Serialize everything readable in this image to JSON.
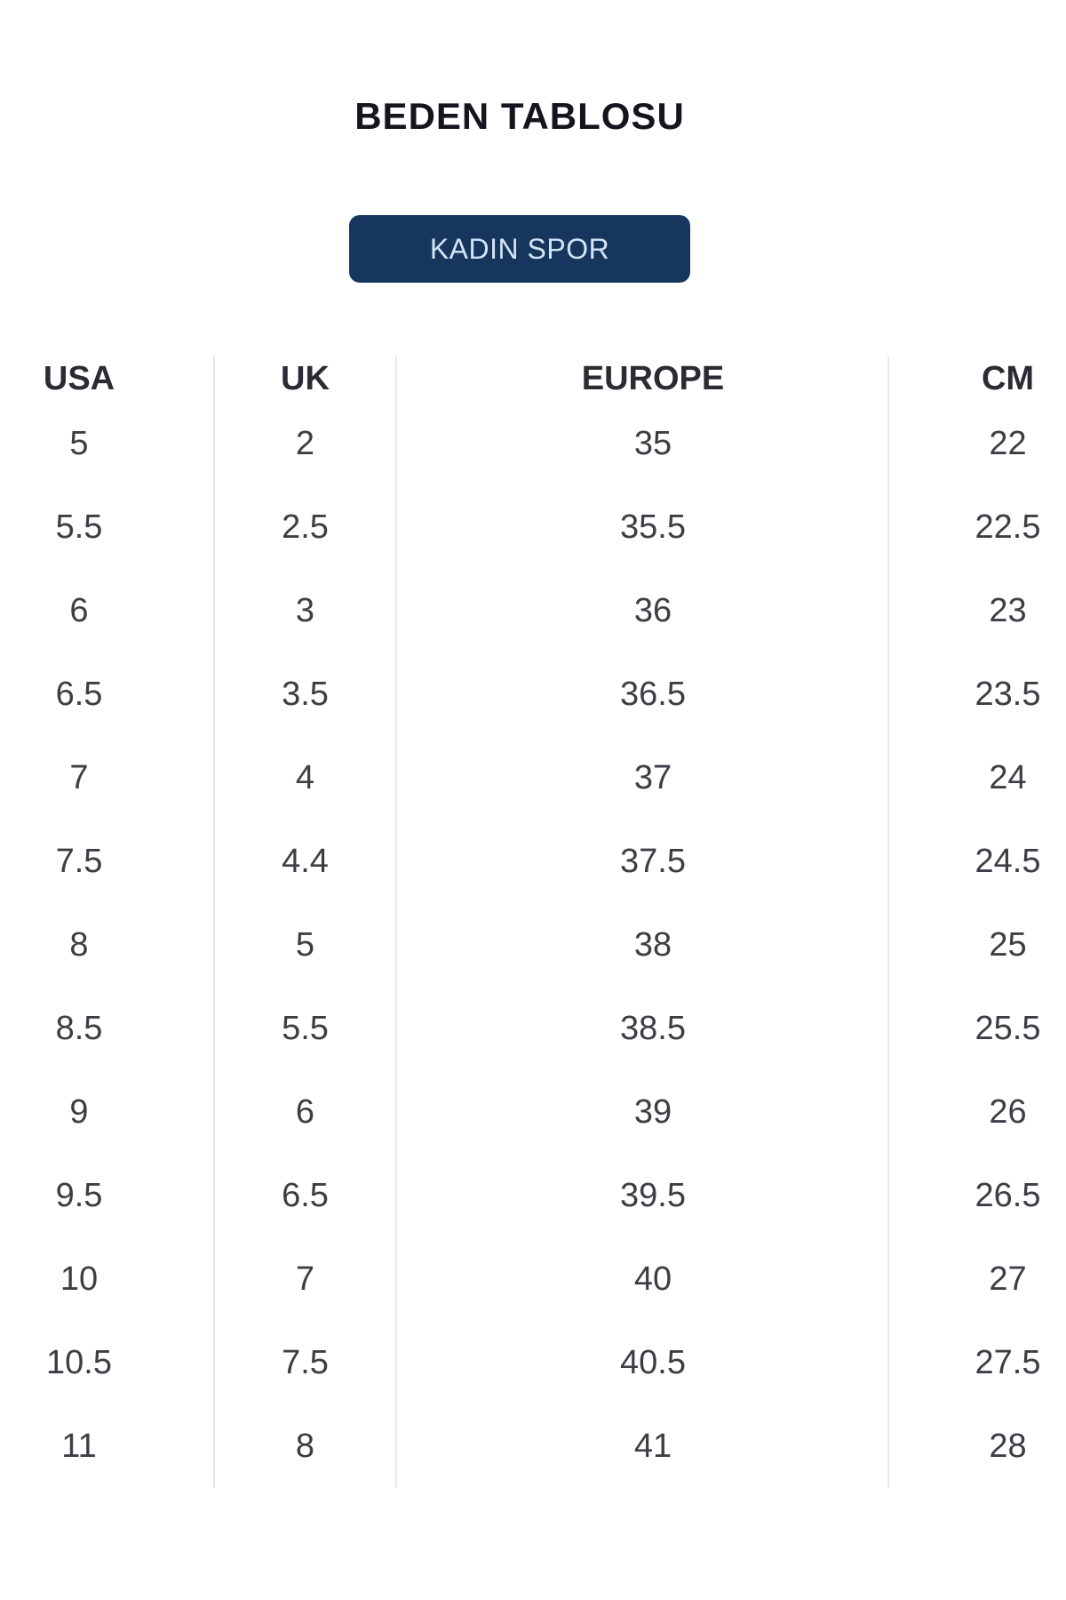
{
  "page": {
    "title": "BEDEN TABLOSU",
    "background": "#ffffff"
  },
  "category_button": {
    "label": "KADIN SPOR",
    "bg_color": "#17365e",
    "text_color": "#d3e4f6"
  },
  "size_table": {
    "columns": [
      "USA",
      "UK",
      "EUROPE",
      "CM"
    ],
    "rows": [
      [
        "5",
        "2",
        "35",
        "22"
      ],
      [
        "5.5",
        "2.5",
        "35.5",
        "22.5"
      ],
      [
        "6",
        "3",
        "36",
        "23"
      ],
      [
        "6.5",
        "3.5",
        "36.5",
        "23.5"
      ],
      [
        "7",
        "4",
        "37",
        "24"
      ],
      [
        "7.5",
        "4.4",
        "37.5",
        "24.5"
      ],
      [
        "8",
        "5",
        "38",
        "25"
      ],
      [
        "8.5",
        "5.5",
        "38.5",
        "25.5"
      ],
      [
        "9",
        "6",
        "39",
        "26"
      ],
      [
        "9.5",
        "6.5",
        "39.5",
        "26.5"
      ],
      [
        "10",
        "7",
        "40",
        "27"
      ],
      [
        "10.5",
        "7.5",
        "40.5",
        "27.5"
      ],
      [
        "11",
        "8",
        "41",
        "28"
      ]
    ],
    "divider_color": "#e7e7e9",
    "header_text_color": "#2b2b33",
    "cell_text_color": "#3d3d45"
  }
}
